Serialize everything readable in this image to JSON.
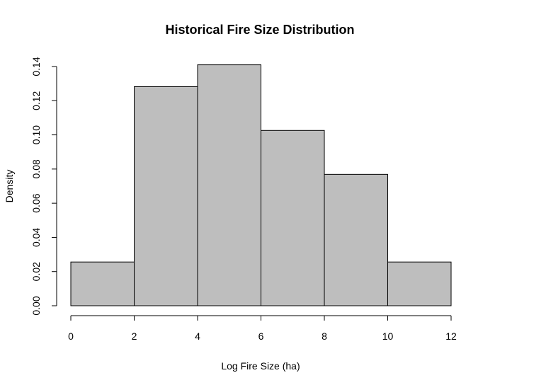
{
  "chart_data": {
    "type": "bar",
    "subtype": "histogram",
    "title": "Historical Fire Size Distribution",
    "xlabel": "Log Fire Size (ha)",
    "ylabel": "Density",
    "bin_edges": [
      0,
      2,
      4,
      6,
      8,
      10,
      12
    ],
    "values": [
      0.0256,
      0.1282,
      0.141,
      0.1026,
      0.0769,
      0.0256
    ],
    "xlim": [
      0,
      12
    ],
    "ylim": [
      0,
      0.14
    ],
    "x_ticks": [
      0,
      2,
      4,
      6,
      8,
      10,
      12
    ],
    "x_tick_labels": [
      "0",
      "2",
      "4",
      "6",
      "8",
      "10",
      "12"
    ],
    "y_ticks": [
      0,
      0.02,
      0.04,
      0.06,
      0.08,
      0.1,
      0.12,
      0.14
    ],
    "y_tick_labels": [
      "0.00",
      "0.02",
      "0.04",
      "0.06",
      "0.08",
      "0.10",
      "0.12",
      "0.14"
    ],
    "grid": false,
    "legend": "none",
    "colors": {
      "bar_fill": "#bebebe",
      "bar_stroke": "#000000",
      "axis": "#000000"
    }
  }
}
